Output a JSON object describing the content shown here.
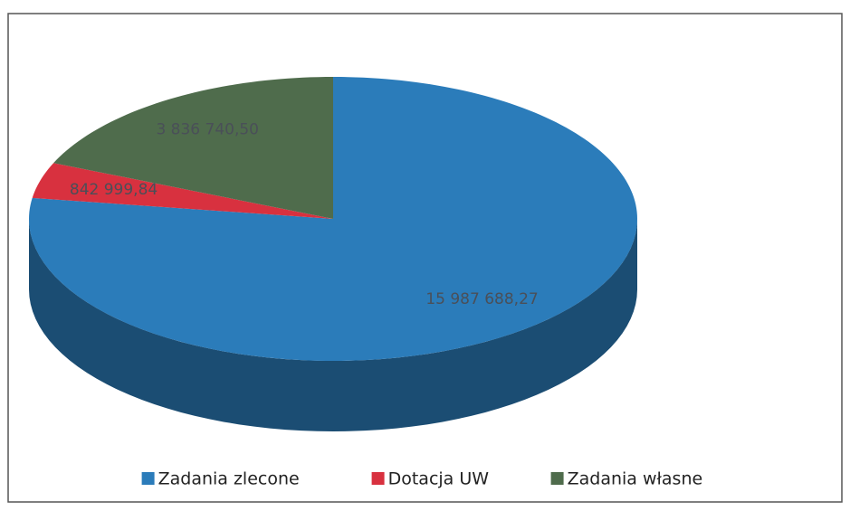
{
  "chart_data": {
    "type": "pie",
    "categories": [
      "Zadania zlecone",
      "Dotacja UW",
      "Zadania własne"
    ],
    "values": [
      15987688.27,
      842999.84,
      3836740.5
    ],
    "value_labels": [
      "15 987 688,27",
      "842 999,84",
      "3 836 740,50"
    ],
    "colors": [
      "#2b7cba",
      "#d8313f",
      "#4f6c4c"
    ],
    "legend": "bottom"
  }
}
